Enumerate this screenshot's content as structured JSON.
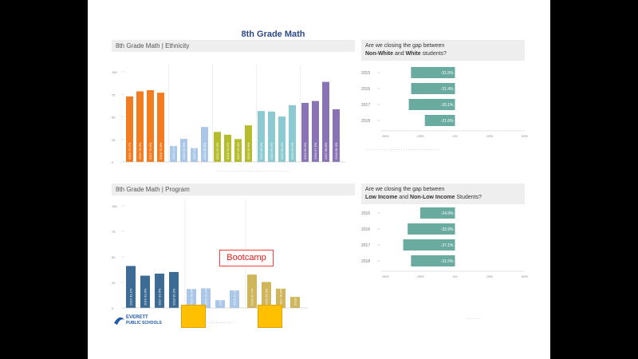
{
  "slide": {
    "title": "8th Grade Math",
    "bootcamp_label": "Bootcamp",
    "footer_logo_line1": "EVERETT",
    "footer_logo_line2": "PUBLIC SCHOOLS",
    "footer_center": "· ·· · ··· ··· · ·· ·",
    "footer_right": "· · · · · ·",
    "ethnicity_note": "· · · · · · · · · · · · · · · · · · · · · · · · · · · · · ·"
  },
  "colors": {
    "orange": "#f47c20",
    "lightblue": "#aac7e8",
    "olive": "#b5bd2d",
    "teal": "#8bcad1",
    "purple": "#8a73b4",
    "navy": "#3c6c93",
    "gold": "#cfb55c",
    "gapbar": "#6aaba0"
  },
  "chart_data": [
    {
      "type": "bar",
      "title": "8th Grade Math | Ethnicity",
      "ylim": [
        0,
        100
      ],
      "ytick_labels": [
        "100",
        "75",
        "50",
        "25",
        "0"
      ],
      "groups": [
        {
          "name": "",
          "color": "orange",
          "x": [
            "2015",
            "2016",
            "2017",
            "2018"
          ],
          "values": [
            72.7,
            78.3,
            79.6,
            76.8
          ]
        },
        {
          "name": "",
          "color": "lightblue",
          "x": [
            "2015",
            "2016",
            "2017",
            "2018"
          ],
          "values": [
            17.8,
            25.6,
            15.4,
            38.8
          ]
        },
        {
          "name": "",
          "color": "olive",
          "x": [
            "2015",
            "2016",
            "2017",
            "2018"
          ],
          "values": [
            33.3,
            30.2,
            25.4,
            40.6
          ]
        },
        {
          "name": "",
          "color": "teal",
          "x": [
            "2015",
            "2016",
            "2017",
            "2018"
          ],
          "values": [
            56.5,
            55.9,
            50.4,
            63.0
          ]
        },
        {
          "name": "",
          "color": "purple",
          "x": [
            "2015",
            "2016",
            "2017",
            "2018"
          ],
          "values": [
            65.5,
            67.6,
            88.8,
            58.4
          ]
        }
      ]
    },
    {
      "type": "bar",
      "orientation": "horizontal",
      "title": "Are we closing the gap between Non-White and White students?",
      "categories": [
        "2015",
        "2016",
        "2017",
        "2018"
      ],
      "values": [
        -31.5,
        -31.4,
        -33.1,
        -21.6
      ],
      "value_labels": [
        "-31.5%",
        "-31.4%",
        "-33.1%",
        "-21.6%"
      ],
      "xlim": [
        -50,
        50
      ],
      "xtick_labels": [
        "-50%",
        "-25%",
        "0%",
        "25%",
        "50%"
      ]
    },
    {
      "type": "bar",
      "title": "8th Grade Math | Program",
      "ylim": [
        0,
        100
      ],
      "ytick_labels": [
        "100",
        "75",
        "50",
        "25",
        "0"
      ],
      "groups": [
        {
          "name": "",
          "color": "navy",
          "x": [
            "2015",
            "2016",
            "2017",
            "2018"
          ],
          "values": [
            41.1,
            31.6,
            33.6,
            35.2
          ]
        },
        {
          "name": "",
          "color": "lightblue",
          "x": [
            "2015",
            "2016",
            "2017",
            "2018"
          ],
          "values": [
            18.6,
            19.2,
            7.6,
            17.2
          ]
        },
        {
          "name": "",
          "color": "gold",
          "x": [
            "2015",
            "2016",
            "2017",
            "2018"
          ],
          "values": [
            32.7,
            25.4,
            18.9,
            10.8
          ]
        }
      ]
    },
    {
      "type": "bar",
      "orientation": "horizontal",
      "title": "Are we closing the gap between Low Income and Non-Low Income Students?",
      "categories": [
        "2015",
        "2016",
        "2017",
        "2018"
      ],
      "values": [
        -24.9,
        -33.9,
        -37.1,
        -31.5
      ],
      "value_labels": [
        "-24.9%",
        "-33.9%",
        "-37.1%",
        "-31.5%"
      ],
      "xlim": [
        -50,
        50
      ],
      "xtick_labels": [
        "-50%",
        "-25%",
        "0%",
        "25%",
        "50%"
      ]
    }
  ],
  "headers": {
    "eth": "8th Grade Math | Ethnicity",
    "prog": "8th Grade Math | Program",
    "gap1_line1": "Are we closing the gap between",
    "gap1_strong1": "Non-White",
    "gap1_mid": " and ",
    "gap1_strong2": "White",
    "gap1_end": " students?",
    "gap2_line1": "Are we closing the gap between",
    "gap2_strong1": "Low Income",
    "gap2_mid": " and ",
    "gap2_strong2": "Non-Low Income",
    "gap2_end": " Students?"
  }
}
